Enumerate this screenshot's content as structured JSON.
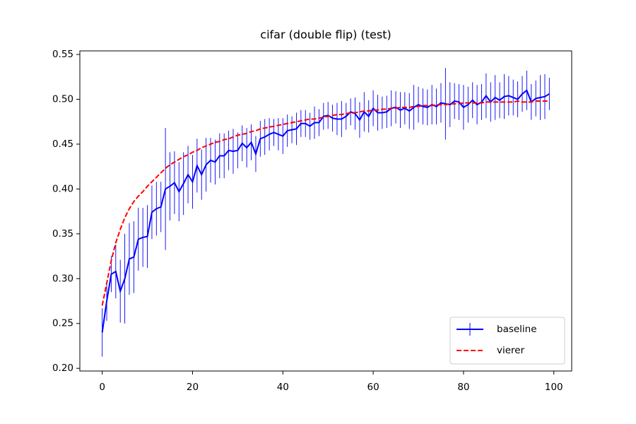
{
  "chart_data": {
    "type": "errorbar-line",
    "title": "cifar (double flip) (test)",
    "x": [
      0,
      1,
      2,
      3,
      4,
      5,
      6,
      7,
      8,
      9,
      10,
      11,
      12,
      13,
      14,
      15,
      16,
      17,
      18,
      19,
      20,
      21,
      22,
      23,
      24,
      25,
      26,
      27,
      28,
      29,
      30,
      31,
      32,
      33,
      34,
      35,
      36,
      37,
      38,
      39,
      40,
      41,
      42,
      43,
      44,
      45,
      46,
      47,
      48,
      49,
      50,
      51,
      52,
      53,
      54,
      55,
      56,
      57,
      58,
      59,
      60,
      61,
      62,
      63,
      64,
      65,
      66,
      67,
      68,
      69,
      70,
      71,
      72,
      73,
      74,
      75,
      76,
      77,
      78,
      79,
      80,
      81,
      82,
      83,
      84,
      85,
      86,
      87,
      88,
      89,
      90,
      91,
      92,
      93,
      94,
      95,
      96,
      97,
      98,
      99
    ],
    "series": [
      {
        "name": "baseline",
        "color": "#0000ff",
        "dash": false,
        "values": [
          0.24,
          0.275,
          0.305,
          0.308,
          0.286,
          0.3,
          0.322,
          0.324,
          0.344,
          0.346,
          0.347,
          0.374,
          0.378,
          0.38,
          0.4,
          0.403,
          0.407,
          0.397,
          0.406,
          0.416,
          0.408,
          0.426,
          0.416,
          0.427,
          0.432,
          0.43,
          0.437,
          0.437,
          0.443,
          0.442,
          0.443,
          0.451,
          0.446,
          0.452,
          0.439,
          0.456,
          0.458,
          0.461,
          0.463,
          0.461,
          0.459,
          0.465,
          0.466,
          0.467,
          0.473,
          0.473,
          0.47,
          0.474,
          0.474,
          0.481,
          0.482,
          0.479,
          0.478,
          0.478,
          0.481,
          0.486,
          0.484,
          0.477,
          0.486,
          0.481,
          0.49,
          0.485,
          0.485,
          0.486,
          0.49,
          0.491,
          0.488,
          0.49,
          0.487,
          0.491,
          0.494,
          0.492,
          0.491,
          0.494,
          0.492,
          0.496,
          0.495,
          0.494,
          0.498,
          0.497,
          0.491,
          0.494,
          0.499,
          0.494,
          0.497,
          0.504,
          0.497,
          0.502,
          0.499,
          0.503,
          0.504,
          0.502,
          0.5,
          0.506,
          0.51,
          0.497,
          0.501,
          0.502,
          0.503,
          0.506
        ],
        "errors": [
          0.027,
          0.022,
          0.02,
          0.03,
          0.035,
          0.05,
          0.04,
          0.04,
          0.035,
          0.033,
          0.035,
          0.03,
          0.03,
          0.028,
          0.068,
          0.038,
          0.035,
          0.033,
          0.035,
          0.032,
          0.03,
          0.03,
          0.028,
          0.03,
          0.025,
          0.025,
          0.025,
          0.025,
          0.022,
          0.025,
          0.02,
          0.02,
          0.022,
          0.02,
          0.02,
          0.02,
          0.02,
          0.018,
          0.015,
          0.018,
          0.02,
          0.018,
          0.015,
          0.018,
          0.015,
          0.015,
          0.015,
          0.018,
          0.015,
          0.015,
          0.015,
          0.015,
          0.018,
          0.02,
          0.015,
          0.015,
          0.018,
          0.02,
          0.022,
          0.018,
          0.02,
          0.02,
          0.018,
          0.018,
          0.02,
          0.018,
          0.02,
          0.018,
          0.02,
          0.025,
          0.02,
          0.02,
          0.02,
          0.022,
          0.02,
          0.022,
          0.04,
          0.025,
          0.02,
          0.02,
          0.025,
          0.02,
          0.02,
          0.022,
          0.02,
          0.025,
          0.022,
          0.025,
          0.02,
          0.025,
          0.022,
          0.02,
          0.02,
          0.02,
          0.022,
          0.02,
          0.02,
          0.025,
          0.025,
          0.018
        ]
      },
      {
        "name": "vierer",
        "color": "#ff0000",
        "dash": true,
        "values": [
          0.27,
          0.295,
          0.32,
          0.34,
          0.355,
          0.368,
          0.378,
          0.386,
          0.392,
          0.397,
          0.403,
          0.408,
          0.413,
          0.418,
          0.423,
          0.427,
          0.43,
          0.433,
          0.436,
          0.438,
          0.441,
          0.443,
          0.446,
          0.448,
          0.45,
          0.452,
          0.453,
          0.455,
          0.456,
          0.458,
          0.46,
          0.461,
          0.462,
          0.464,
          0.465,
          0.467,
          0.468,
          0.469,
          0.47,
          0.471,
          0.472,
          0.473,
          0.474,
          0.475,
          0.476,
          0.477,
          0.478,
          0.478,
          0.479,
          0.48,
          0.481,
          0.482,
          0.483,
          0.483,
          0.484,
          0.485,
          0.485,
          0.486,
          0.487,
          0.487,
          0.488,
          0.488,
          0.489,
          0.489,
          0.49,
          0.49,
          0.491,
          0.491,
          0.491,
          0.492,
          0.492,
          0.493,
          0.493,
          0.493,
          0.494,
          0.494,
          0.494,
          0.495,
          0.495,
          0.495,
          0.496,
          0.496,
          0.496,
          0.496,
          0.496,
          0.497,
          0.497,
          0.497,
          0.497,
          0.497,
          0.497,
          0.497,
          0.498,
          0.497,
          0.497,
          0.497,
          0.498,
          0.498,
          0.498,
          0.498
        ]
      }
    ],
    "xlim": [
      -4.95,
      103.95
    ],
    "xticks": [
      0,
      20,
      40,
      60,
      80,
      100
    ],
    "ylim": [
      0.197,
      0.554
    ],
    "yticks": [
      {
        "value": 0.2,
        "label": "0.20"
      },
      0.25,
      {
        "value": 0.3,
        "label": "0.30"
      },
      0.35,
      {
        "value": 0.4,
        "label": "0.40"
      },
      0.45,
      {
        "value": 0.5,
        "label": "0.50"
      },
      0.55
    ],
    "legend": "lower right"
  }
}
